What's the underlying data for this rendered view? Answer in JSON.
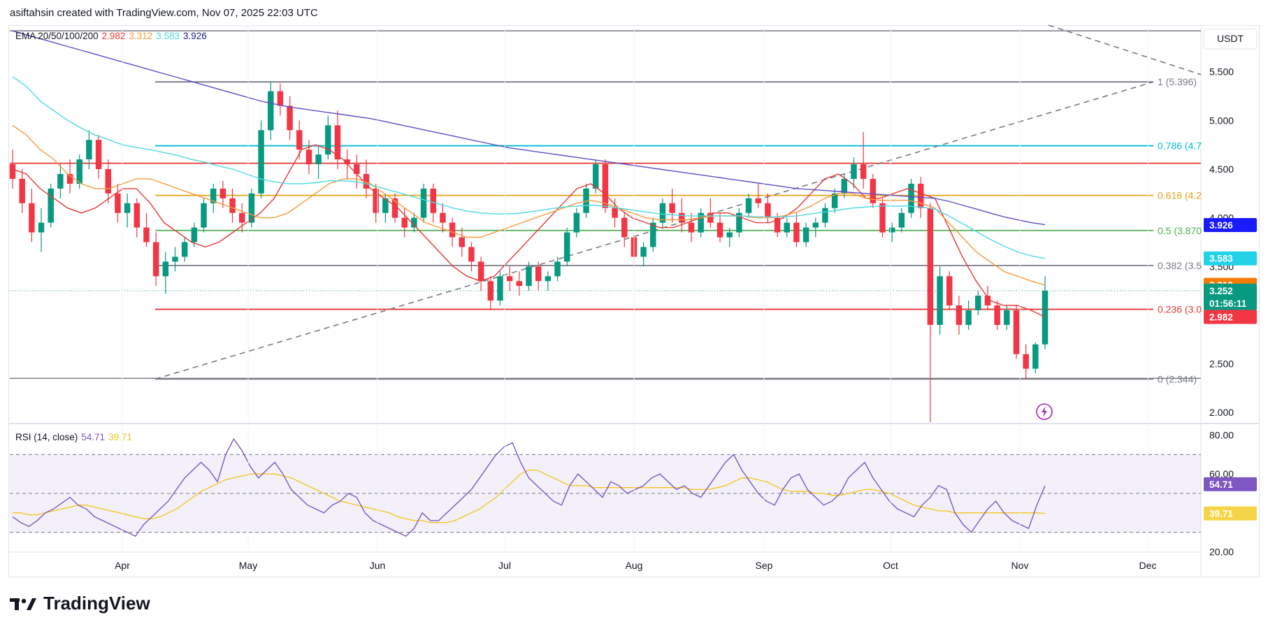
{
  "header": {
    "attribution": "asiftahsin created with TradingView.com, Nov 07, 2025 22:03 UTC"
  },
  "brand": {
    "name": "TradingView"
  },
  "price_axis": {
    "currency": "USDT",
    "ticks": [
      "5.500",
      "5.000",
      "4.500",
      "4.000",
      "3.500",
      "3.000",
      "2.500",
      "2.000"
    ]
  },
  "rsi_axis": {
    "ticks": [
      "80.00",
      "60.00",
      "40.00",
      "20.00"
    ]
  },
  "time_axis": {
    "labels": [
      "Apr",
      "May",
      "Jun",
      "Jul",
      "Aug",
      "Sep",
      "Oct",
      "Nov",
      "Dec"
    ]
  },
  "ema_legend": {
    "label": "EMA 20/50/100/200",
    "values": [
      {
        "text": "2.982",
        "color": "#e53935"
      },
      {
        "text": "3.312",
        "color": "#f59a3c"
      },
      {
        "text": "3.583",
        "color": "#4dd9e0"
      },
      {
        "text": "3.926",
        "color": "#1a237e"
      }
    ]
  },
  "rsi_legend": {
    "label": "RSI (14, close)",
    "values": [
      {
        "text": "54.71",
        "color": "#7e57c2"
      },
      {
        "text": "39.71",
        "color": "#e8c32a"
      }
    ]
  },
  "price_tags": [
    {
      "text": "3.926",
      "bg": "#1a1aff",
      "price": 3.926
    },
    {
      "text": "3.583",
      "bg": "#22d3e8",
      "price": 3.583
    },
    {
      "text": "3.312",
      "bg": "#f57c00",
      "price": 3.312
    },
    {
      "text": "3.252",
      "sub": "01:56:11",
      "bg": "#089981",
      "price": 3.252
    },
    {
      "text": "2.982",
      "bg": "#f23645",
      "price": 2.982
    }
  ],
  "rsi_tags": [
    {
      "text": "54.71",
      "bg": "#7e57c2",
      "value": 54.71
    },
    {
      "text": "39.71",
      "bg": "#f5d547",
      "value": 39.71,
      "fg": "#131722"
    }
  ],
  "colors": {
    "up": "#089981",
    "down": "#f23645",
    "ema20": "#e53935",
    "ema50": "#f59a3c",
    "ema100": "#4dd9e0",
    "ema200": "#5b4fc7",
    "rsi": "#7e57c2",
    "rsi_ma": "#f5c518"
  },
  "chart_data": {
    "type": "candlestick",
    "pair_quote": "USDT",
    "ylim": [
      1.93,
      5.95
    ],
    "fib_levels": [
      {
        "ratio": "1",
        "label": "1 (5.396)",
        "price": 5.396,
        "color": "#787b86"
      },
      {
        "ratio": "0.786",
        "label": "0.786 (4.7",
        "price": 4.74,
        "color": "#00bcd4"
      },
      {
        "ratio": "0.618",
        "label": "0.618 (4.2",
        "price": 4.23,
        "color": "#e8a317"
      },
      {
        "ratio": "0.5",
        "label": "0.5 (3.870",
        "price": 3.87,
        "color": "#4caf50"
      },
      {
        "ratio": "0.382",
        "label": "0.382 (3.5",
        "price": 3.51,
        "color": "#787b86"
      },
      {
        "ratio": "0.236",
        "label": "0.236 (3.0",
        "price": 3.06,
        "color": "#e53935"
      },
      {
        "ratio": "0",
        "label": "0 (2.344)",
        "price": 2.344,
        "color": "#787b86"
      }
    ],
    "resistance_red": 4.56,
    "top_line": 5.92,
    "ema_last": {
      "ema20": 2.982,
      "ema50": 3.312,
      "ema100": 3.583,
      "ema200": 3.926
    },
    "rsi": {
      "ylim": [
        18,
        82
      ],
      "upper": 70,
      "middle": 50,
      "lower": 30,
      "last": 54.71,
      "ma_last": 39.71
    },
    "candles": [
      [
        4.55,
        4.7,
        4.3,
        4.4
      ],
      [
        4.4,
        4.5,
        4.05,
        4.15
      ],
      [
        4.15,
        4.3,
        3.75,
        3.85
      ],
      [
        3.85,
        4.1,
        3.65,
        3.95
      ],
      [
        3.95,
        4.35,
        3.9,
        4.3
      ],
      [
        4.3,
        4.55,
        4.2,
        4.45
      ],
      [
        4.45,
        4.6,
        4.25,
        4.35
      ],
      [
        4.35,
        4.65,
        4.3,
        4.6
      ],
      [
        4.6,
        4.9,
        4.5,
        4.8
      ],
      [
        4.8,
        4.85,
        4.4,
        4.5
      ],
      [
        4.5,
        4.6,
        4.15,
        4.25
      ],
      [
        4.25,
        4.35,
        3.95,
        4.05
      ],
      [
        4.05,
        4.25,
        3.9,
        4.15
      ],
      [
        4.15,
        4.2,
        3.8,
        3.9
      ],
      [
        3.9,
        4.05,
        3.7,
        3.75
      ],
      [
        3.75,
        3.85,
        3.3,
        3.4
      ],
      [
        3.4,
        3.65,
        3.22,
        3.55
      ],
      [
        3.55,
        3.7,
        3.45,
        3.6
      ],
      [
        3.6,
        3.8,
        3.55,
        3.75
      ],
      [
        3.75,
        3.95,
        3.7,
        3.9
      ],
      [
        3.9,
        4.2,
        3.85,
        4.15
      ],
      [
        4.15,
        4.35,
        4.05,
        4.3
      ],
      [
        4.3,
        4.38,
        4.1,
        4.2
      ],
      [
        4.2,
        4.3,
        3.95,
        4.05
      ],
      [
        4.05,
        4.15,
        3.85,
        3.95
      ],
      [
        3.95,
        4.3,
        3.9,
        4.25
      ],
      [
        4.25,
        5.0,
        4.2,
        4.9
      ],
      [
        4.9,
        5.4,
        4.8,
        5.3
      ],
      [
        5.3,
        5.38,
        5.05,
        5.15
      ],
      [
        5.15,
        5.25,
        4.8,
        4.9
      ],
      [
        4.9,
        5.0,
        4.6,
        4.7
      ],
      [
        4.7,
        4.8,
        4.45,
        4.55
      ],
      [
        4.55,
        4.75,
        4.4,
        4.65
      ],
      [
        4.65,
        5.05,
        4.6,
        4.95
      ],
      [
        4.95,
        5.1,
        4.5,
        4.6
      ],
      [
        4.6,
        4.7,
        4.4,
        4.55
      ],
      [
        4.55,
        4.65,
        4.3,
        4.45
      ],
      [
        4.45,
        4.6,
        4.2,
        4.3
      ],
      [
        4.3,
        4.35,
        3.95,
        4.05
      ],
      [
        4.05,
        4.25,
        3.95,
        4.2
      ],
      [
        4.2,
        4.25,
        3.95,
        4.0
      ],
      [
        4.0,
        4.1,
        3.8,
        3.9
      ],
      [
        3.9,
        4.05,
        3.85,
        4.0
      ],
      [
        4.0,
        4.35,
        3.95,
        4.3
      ],
      [
        4.3,
        4.35,
        3.95,
        4.05
      ],
      [
        4.05,
        4.15,
        3.85,
        3.95
      ],
      [
        3.95,
        4.0,
        3.7,
        3.8
      ],
      [
        3.8,
        3.9,
        3.6,
        3.7
      ],
      [
        3.7,
        3.75,
        3.45,
        3.55
      ],
      [
        3.55,
        3.6,
        3.25,
        3.35
      ],
      [
        3.35,
        3.4,
        3.05,
        3.15
      ],
      [
        3.15,
        3.45,
        3.1,
        3.4
      ],
      [
        3.4,
        3.5,
        3.25,
        3.35
      ],
      [
        3.35,
        3.45,
        3.2,
        3.3
      ],
      [
        3.3,
        3.55,
        3.25,
        3.5
      ],
      [
        3.5,
        3.55,
        3.25,
        3.35
      ],
      [
        3.35,
        3.45,
        3.25,
        3.4
      ],
      [
        3.4,
        3.6,
        3.35,
        3.55
      ],
      [
        3.55,
        3.9,
        3.5,
        3.85
      ],
      [
        3.85,
        4.1,
        3.8,
        4.05
      ],
      [
        4.05,
        4.35,
        4.0,
        4.3
      ],
      [
        4.3,
        4.6,
        4.25,
        4.55
      ],
      [
        4.55,
        4.6,
        4.05,
        4.1
      ],
      [
        4.1,
        4.2,
        3.9,
        4.0
      ],
      [
        4.0,
        4.05,
        3.7,
        3.8
      ],
      [
        3.8,
        3.85,
        3.5,
        3.6
      ],
      [
        3.6,
        3.75,
        3.5,
        3.7
      ],
      [
        3.7,
        4.0,
        3.65,
        3.95
      ],
      [
        3.95,
        4.2,
        3.9,
        4.15
      ],
      [
        4.15,
        4.3,
        3.95,
        4.05
      ],
      [
        4.05,
        4.2,
        3.85,
        3.95
      ],
      [
        3.95,
        4.05,
        3.75,
        3.85
      ],
      [
        3.85,
        4.1,
        3.8,
        4.05
      ],
      [
        4.05,
        4.2,
        3.9,
        3.95
      ],
      [
        3.95,
        4.05,
        3.75,
        3.8
      ],
      [
        3.8,
        3.9,
        3.7,
        3.85
      ],
      [
        3.85,
        4.1,
        3.8,
        4.05
      ],
      [
        4.05,
        4.25,
        4.0,
        4.2
      ],
      [
        4.2,
        4.35,
        4.1,
        4.15
      ],
      [
        4.15,
        4.25,
        3.95,
        4.0
      ],
      [
        4.0,
        4.05,
        3.8,
        3.85
      ],
      [
        3.85,
        4.0,
        3.8,
        3.95
      ],
      [
        3.95,
        4.05,
        3.7,
        3.75
      ],
      [
        3.75,
        3.95,
        3.7,
        3.9
      ],
      [
        3.9,
        4.0,
        3.8,
        3.95
      ],
      [
        3.95,
        4.15,
        3.9,
        4.1
      ],
      [
        4.1,
        4.3,
        4.05,
        4.25
      ],
      [
        4.25,
        4.45,
        4.2,
        4.4
      ],
      [
        4.4,
        4.62,
        4.3,
        4.55
      ],
      [
        4.55,
        4.88,
        4.3,
        4.4
      ],
      [
        4.4,
        4.45,
        4.1,
        4.15
      ],
      [
        4.15,
        4.2,
        3.8,
        3.85
      ],
      [
        3.85,
        3.95,
        3.75,
        3.9
      ],
      [
        3.9,
        4.1,
        3.85,
        4.05
      ],
      [
        4.05,
        4.4,
        4.0,
        4.35
      ],
      [
        4.35,
        4.42,
        4.0,
        4.1
      ],
      [
        4.1,
        4.15,
        1.9,
        2.9
      ],
      [
        2.9,
        3.5,
        2.8,
        3.4
      ],
      [
        3.4,
        3.45,
        3.05,
        3.1
      ],
      [
        3.1,
        3.2,
        2.8,
        2.9
      ],
      [
        2.9,
        3.15,
        2.85,
        3.05
      ],
      [
        3.05,
        3.25,
        3.0,
        3.2
      ],
      [
        3.2,
        3.3,
        3.05,
        3.1
      ],
      [
        3.1,
        3.15,
        2.85,
        2.9
      ],
      [
        2.9,
        3.1,
        2.85,
        3.05
      ],
      [
        3.05,
        3.1,
        2.55,
        2.6
      ],
      [
        2.6,
        2.7,
        2.34,
        2.45
      ],
      [
        2.45,
        2.72,
        2.4,
        2.7
      ],
      [
        2.7,
        3.4,
        2.65,
        3.252
      ]
    ],
    "ema_series": {
      "ema20": [
        4.5,
        4.45,
        4.3,
        4.2,
        4.1,
        4.05,
        4.1,
        4.2,
        4.3,
        4.3,
        4.15,
        3.95,
        3.85,
        3.75,
        3.7,
        3.75,
        3.85,
        3.95,
        4.05,
        4.2,
        4.45,
        4.7,
        4.75,
        4.7,
        4.6,
        4.45,
        4.3,
        4.2,
        4.1,
        3.95,
        3.8,
        3.65,
        3.5,
        3.4,
        3.35,
        3.4,
        3.55,
        3.7,
        3.85,
        4.0,
        4.15,
        4.3,
        4.35,
        4.25,
        4.1,
        4.0,
        3.95,
        3.9,
        3.9,
        3.95,
        4.0,
        4.05,
        4.05,
        4.0,
        3.95,
        3.95,
        4.0,
        4.1,
        4.25,
        4.4,
        4.45,
        4.35,
        4.2,
        4.2,
        4.25,
        4.3,
        4.25,
        4.2,
        3.9,
        3.6,
        3.35,
        3.15,
        3.1,
        3.1,
        3.05,
        2.98
      ],
      "ema50": [
        4.95,
        4.85,
        4.7,
        4.6,
        4.45,
        4.35,
        4.3,
        4.3,
        4.35,
        4.4,
        4.4,
        4.35,
        4.3,
        4.25,
        4.2,
        4.15,
        4.1,
        4.05,
        4.0,
        4.0,
        4.05,
        4.15,
        4.25,
        4.35,
        4.4,
        4.4,
        4.35,
        4.25,
        4.15,
        4.05,
        3.95,
        3.9,
        3.85,
        3.8,
        3.8,
        3.85,
        3.9,
        3.95,
        4.0,
        4.05,
        4.1,
        4.15,
        4.18,
        4.15,
        4.1,
        4.05,
        4.0,
        3.98,
        3.98,
        3.98,
        4.0,
        4.02,
        4.02,
        4.02,
        4.0,
        4.0,
        4.02,
        4.06,
        4.12,
        4.2,
        4.25,
        4.25,
        4.2,
        4.18,
        4.18,
        4.18,
        4.15,
        4.1,
        3.95,
        3.8,
        3.65,
        3.55,
        3.45,
        3.4,
        3.35,
        3.31
      ],
      "ema100": [
        5.45,
        5.35,
        5.2,
        5.1,
        5.0,
        4.92,
        4.85,
        4.8,
        4.75,
        4.72,
        4.7,
        4.67,
        4.64,
        4.6,
        4.57,
        4.53,
        4.5,
        4.45,
        4.4,
        4.37,
        4.35,
        4.35,
        4.36,
        4.38,
        4.38,
        4.37,
        4.34,
        4.3,
        4.26,
        4.22,
        4.18,
        4.14,
        4.1,
        4.07,
        4.05,
        4.04,
        4.04,
        4.05,
        4.07,
        4.09,
        4.11,
        4.12,
        4.13,
        4.12,
        4.1,
        4.08,
        4.06,
        4.04,
        4.03,
        4.02,
        4.02,
        4.02,
        4.02,
        4.02,
        4.01,
        4.01,
        4.01,
        4.02,
        4.04,
        4.06,
        4.08,
        4.1,
        4.11,
        4.12,
        4.12,
        4.12,
        4.11,
        4.09,
        4.02,
        3.94,
        3.86,
        3.78,
        3.71,
        3.65,
        3.61,
        3.58
      ],
      "ema200": [
        5.92,
        5.88,
        5.84,
        5.8,
        5.76,
        5.72,
        5.68,
        5.64,
        5.6,
        5.56,
        5.52,
        5.48,
        5.44,
        5.4,
        5.36,
        5.32,
        5.28,
        5.24,
        5.2,
        5.17,
        5.14,
        5.12,
        5.1,
        5.08,
        5.06,
        5.04,
        5.02,
        4.99,
        4.96,
        4.93,
        4.9,
        4.87,
        4.84,
        4.81,
        4.78,
        4.75,
        4.72,
        4.7,
        4.68,
        4.66,
        4.64,
        4.62,
        4.6,
        4.58,
        4.56,
        4.54,
        4.52,
        4.5,
        4.48,
        4.46,
        4.44,
        4.42,
        4.4,
        4.38,
        4.36,
        4.34,
        4.32,
        4.3,
        4.29,
        4.28,
        4.27,
        4.26,
        4.25,
        4.24,
        4.23,
        4.22,
        4.21,
        4.2,
        4.17,
        4.13,
        4.09,
        4.05,
        4.01,
        3.98,
        3.95,
        3.93
      ]
    },
    "rsi_series": [
      38,
      35,
      33,
      36,
      40,
      42,
      45,
      48,
      44,
      42,
      38,
      36,
      34,
      32,
      30,
      28,
      34,
      38,
      42,
      46,
      52,
      58,
      62,
      66,
      62,
      56,
      70,
      78,
      72,
      64,
      58,
      62,
      66,
      60,
      52,
      48,
      44,
      42,
      40,
      44,
      46,
      50,
      48,
      40,
      36,
      34,
      32,
      30,
      28,
      32,
      40,
      36,
      36,
      40,
      44,
      48,
      52,
      58,
      64,
      70,
      74,
      76,
      66,
      58,
      54,
      50,
      46,
      44,
      54,
      60,
      56,
      52,
      48,
      56,
      54,
      50,
      52,
      54,
      58,
      60,
      56,
      52,
      54,
      50,
      48,
      54,
      60,
      66,
      70,
      62,
      56,
      50,
      46,
      44,
      52,
      58,
      60,
      52,
      48,
      44,
      46,
      50,
      58,
      62,
      66,
      58,
      52,
      46,
      42,
      40,
      38,
      44,
      48,
      54,
      52,
      40,
      34,
      30,
      36,
      42,
      46,
      40,
      36,
      34,
      32,
      44,
      54
    ],
    "rsi_ma_series": [
      40,
      40,
      39,
      39,
      40,
      41,
      42,
      43,
      44,
      44,
      43,
      42,
      41,
      40,
      39,
      38,
      37,
      37,
      38,
      40,
      42,
      45,
      48,
      51,
      53,
      55,
      57,
      58,
      59,
      60,
      60,
      60,
      60,
      59,
      58,
      56,
      54,
      52,
      50,
      48,
      46,
      45,
      44,
      43,
      42,
      41,
      40,
      38,
      37,
      36,
      36,
      35,
      35,
      35,
      36,
      38,
      40,
      42,
      45,
      48,
      52,
      56,
      60,
      62,
      62,
      60,
      58,
      56,
      54,
      54,
      54,
      53,
      53,
      53,
      53,
      53,
      53,
      53,
      53,
      53,
      53,
      53,
      53,
      52,
      52,
      52,
      53,
      54,
      56,
      58,
      58,
      57,
      56,
      54,
      52,
      51,
      51,
      51,
      50,
      50,
      49,
      49,
      50,
      51,
      52,
      52,
      51,
      50,
      48,
      46,
      44,
      43,
      42,
      41,
      41,
      40,
      40,
      40,
      40,
      40,
      40,
      40,
      40,
      40,
      40,
      40,
      39.71
    ]
  }
}
